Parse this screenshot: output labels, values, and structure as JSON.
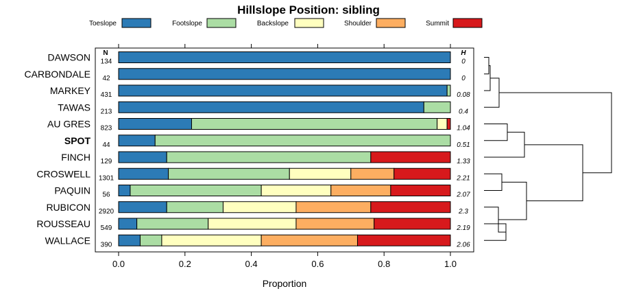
{
  "chart_data": {
    "type": "bar",
    "orientation": "horizontal",
    "stacked": true,
    "title": "Hillslope Position: sibling",
    "xlabel": "Proportion",
    "xlim": [
      0,
      1
    ],
    "xticks": [
      "0.0",
      "0.2",
      "0.4",
      "0.6",
      "0.8",
      "1.0"
    ],
    "legend_placement": "top",
    "n_header": "N",
    "h_header": "H",
    "series": [
      {
        "name": "Toeslope",
        "color": "#2c7bb6"
      },
      {
        "name": "Footslope",
        "color": "#abdda4"
      },
      {
        "name": "Backslope",
        "color": "#ffffbf"
      },
      {
        "name": "Shoulder",
        "color": "#fdae61"
      },
      {
        "name": "Summit",
        "color": "#d7191c"
      }
    ],
    "categories": [
      {
        "name": "DAWSON",
        "n": "134",
        "h": "0",
        "bold": false,
        "values": [
          1.0,
          0,
          0,
          0,
          0
        ]
      },
      {
        "name": "CARBONDALE",
        "n": "42",
        "h": "0",
        "bold": false,
        "values": [
          1.0,
          0,
          0,
          0,
          0
        ]
      },
      {
        "name": "MARKEY",
        "n": "431",
        "h": "0.08",
        "bold": false,
        "values": [
          0.99,
          0.01,
          0,
          0,
          0
        ]
      },
      {
        "name": "TAWAS",
        "n": "213",
        "h": "0.4",
        "bold": false,
        "values": [
          0.92,
          0.08,
          0,
          0,
          0
        ]
      },
      {
        "name": "AU GRES",
        "n": "823",
        "h": "1.04",
        "bold": false,
        "values": [
          0.22,
          0.74,
          0.03,
          0,
          0.01
        ]
      },
      {
        "name": "SPOT",
        "n": "44",
        "h": "0.51",
        "bold": true,
        "values": [
          0.11,
          0.89,
          0,
          0,
          0
        ]
      },
      {
        "name": "FINCH",
        "n": "129",
        "h": "1.33",
        "bold": false,
        "values": [
          0.145,
          0.615,
          0,
          0,
          0.24
        ]
      },
      {
        "name": "CROSWELL",
        "n": "1301",
        "h": "2.21",
        "bold": false,
        "values": [
          0.15,
          0.365,
          0.185,
          0.13,
          0.17
        ]
      },
      {
        "name": "PAQUIN",
        "n": "56",
        "h": "2.07",
        "bold": false,
        "values": [
          0.035,
          0.395,
          0.21,
          0.18,
          0.18
        ]
      },
      {
        "name": "RUBICON",
        "n": "2920",
        "h": "2.3",
        "bold": false,
        "values": [
          0.145,
          0.17,
          0.22,
          0.225,
          0.24
        ]
      },
      {
        "name": "ROUSSEAU",
        "n": "549",
        "h": "2.19",
        "bold": false,
        "values": [
          0.055,
          0.215,
          0.265,
          0.235,
          0.23
        ]
      },
      {
        "name": "WALLACE",
        "n": "390",
        "h": "2.06",
        "bold": false,
        "values": [
          0.065,
          0.065,
          0.3,
          0.29,
          0.28
        ]
      }
    ]
  }
}
